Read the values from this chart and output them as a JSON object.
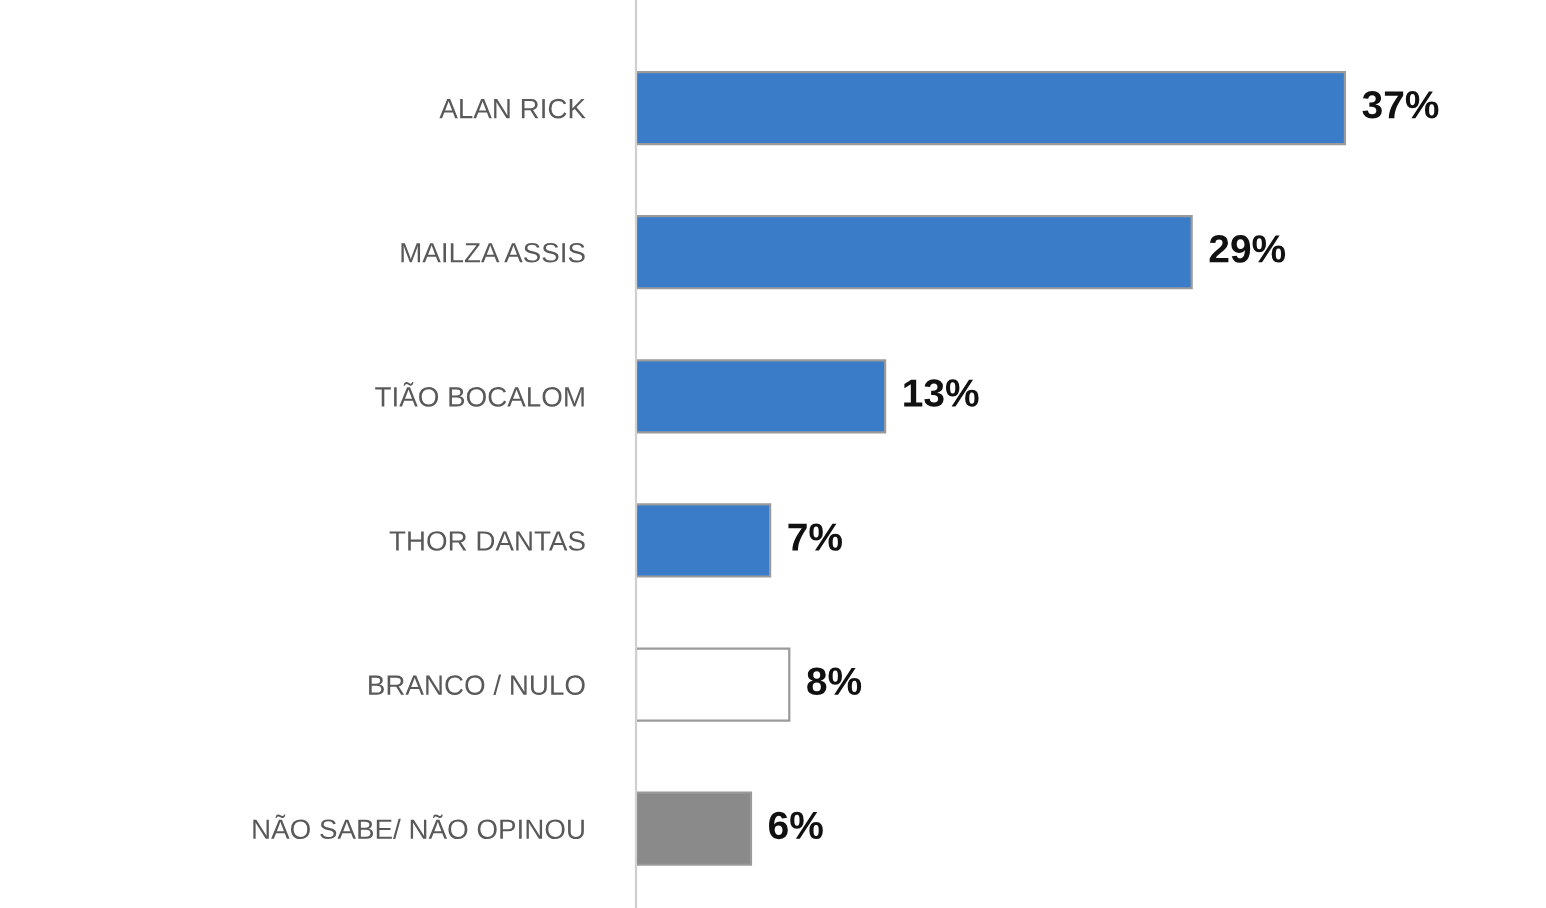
{
  "chart_data": {
    "type": "bar",
    "orientation": "horizontal",
    "categories": [
      "ALAN RICK",
      "MAILZA ASSIS",
      "TIÃO BOCALOM",
      "THOR DANTAS",
      "BRANCO / NULO",
      "NÃO SABE/ NÃO OPINOU"
    ],
    "values": [
      37,
      29,
      13,
      7,
      8,
      6
    ],
    "colors": [
      "#3a7cc8",
      "#3a7cc8",
      "#3a7cc8",
      "#3a7cc8",
      "#ffffff",
      "#8a8a8a"
    ],
    "value_labels": [
      "37%",
      "29%",
      "13%",
      "7%",
      "8%",
      "6%"
    ],
    "grid": false,
    "legend": false
  }
}
